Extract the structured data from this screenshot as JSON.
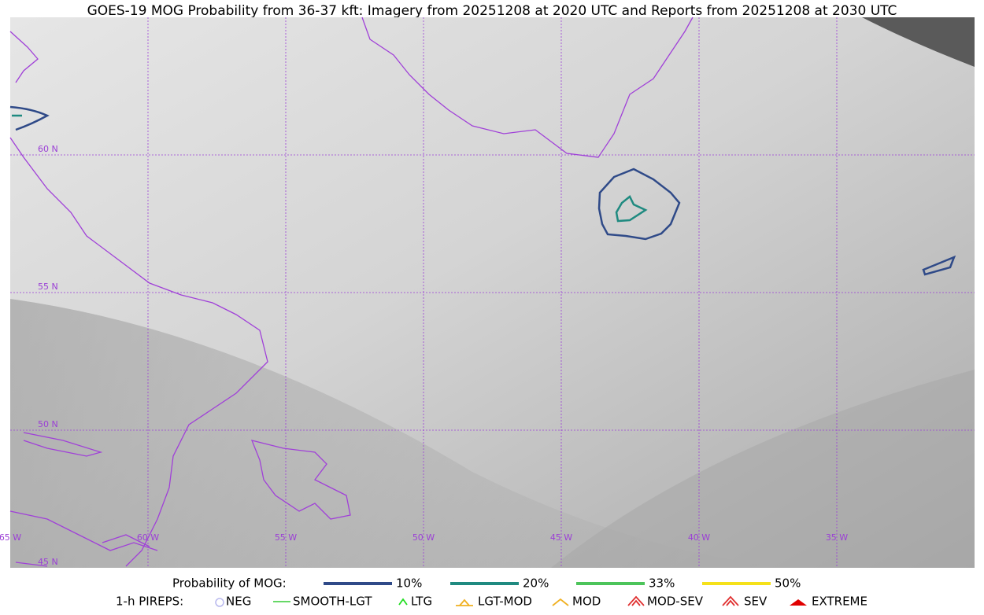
{
  "title": "GOES-19 MOG Probability from 36-37 kft: Imagery from 20251208 at 2020 UTC and Reports from 20251208 at 2030 UTC",
  "map": {
    "lat_labels": [
      "60 N",
      "55 N",
      "50 N",
      "45 N"
    ],
    "lon_labels": [
      "65 W",
      "60 W",
      "55 W",
      "50 W",
      "45 W",
      "40 W",
      "35 W"
    ],
    "grid_color": "#9b3fd6"
  },
  "legend": {
    "mog": {
      "label": "Probability of MOG:",
      "items": [
        {
          "label": "10%",
          "color": "#2f4a88"
        },
        {
          "label": "20%",
          "color": "#1f8a80"
        },
        {
          "label": "33%",
          "color": "#4cc45a"
        },
        {
          "label": "50%",
          "color": "#f5e11a"
        }
      ]
    },
    "pireps": {
      "label": "1-h PIREPS:",
      "items": [
        {
          "label": "NEG",
          "color": "#b8b8ee"
        },
        {
          "label": "SMOOTH-LGT",
          "color": "#33cc33"
        },
        {
          "label": "LTG",
          "color": "#22dd22"
        },
        {
          "label": "LGT-MOD",
          "color": "#f0b020"
        },
        {
          "label": "MOD",
          "color": "#f0b020"
        },
        {
          "label": "MOD-SEV",
          "color": "#e03030"
        },
        {
          "label": "SEV",
          "color": "#e03030"
        },
        {
          "label": "EXTREME",
          "color": "#e00000"
        }
      ]
    }
  }
}
